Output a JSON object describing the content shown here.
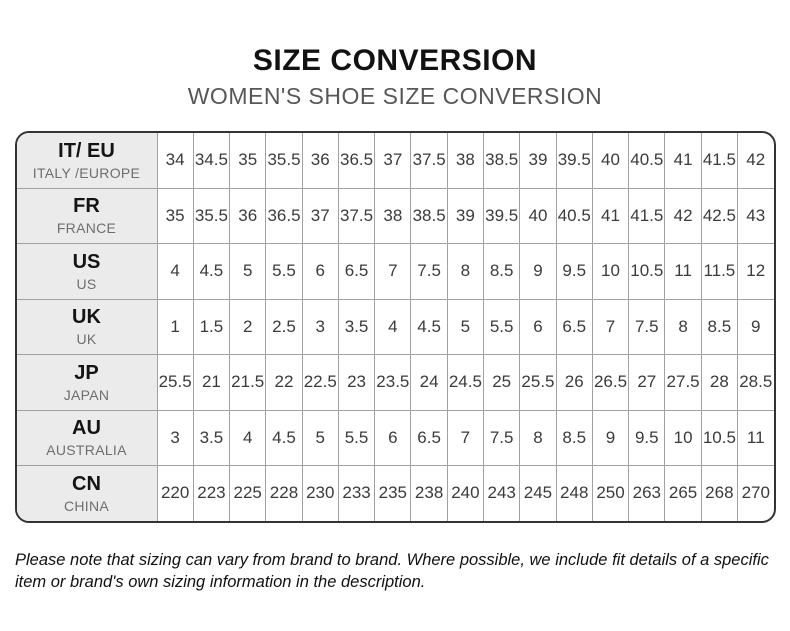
{
  "page": {
    "note": "Please note that sizing can vary from brand to brand. Where possible, we include fit details of a specific item or brand's own sizing information in the description."
  },
  "chart_data": {
    "type": "table",
    "title": "SIZE CONVERSION",
    "subtitle": "WOMEN'S SHOE SIZE CONVERSION",
    "layout": "rows are size systems, columns are equivalent sizes",
    "rows": [
      {
        "code": "IT/ EU",
        "region": "ITALY /EUROPE",
        "values": [
          "34",
          "34.5",
          "35",
          "35.5",
          "36",
          "36.5",
          "37",
          "37.5",
          "38",
          "38.5",
          "39",
          "39.5",
          "40",
          "40.5",
          "41",
          "41.5",
          "42"
        ]
      },
      {
        "code": "FR",
        "region": "FRANCE",
        "values": [
          "35",
          "35.5",
          "36",
          "36.5",
          "37",
          "37.5",
          "38",
          "38.5",
          "39",
          "39.5",
          "40",
          "40.5",
          "41",
          "41.5",
          "42",
          "42.5",
          "43"
        ]
      },
      {
        "code": "US",
        "region": "US",
        "values": [
          "4",
          "4.5",
          "5",
          "5.5",
          "6",
          "6.5",
          "7",
          "7.5",
          "8",
          "8.5",
          "9",
          "9.5",
          "10",
          "10.5",
          "11",
          "11.5",
          "12"
        ]
      },
      {
        "code": "UK",
        "region": "UK",
        "values": [
          "1",
          "1.5",
          "2",
          "2.5",
          "3",
          "3.5",
          "4",
          "4.5",
          "5",
          "5.5",
          "6",
          "6.5",
          "7",
          "7.5",
          "8",
          "8.5",
          "9"
        ]
      },
      {
        "code": "JP",
        "region": "JAPAN",
        "values": [
          "25.5",
          "21",
          "21.5",
          "22",
          "22.5",
          "23",
          "23.5",
          "24",
          "24.5",
          "25",
          "25.5",
          "26",
          "26.5",
          "27",
          "27.5",
          "28",
          "28.5"
        ]
      },
      {
        "code": "AU",
        "region": "AUSTRALIA",
        "values": [
          "3",
          "3.5",
          "4",
          "4.5",
          "5",
          "5.5",
          "6",
          "6.5",
          "7",
          "7.5",
          "8",
          "8.5",
          "9",
          "9.5",
          "10",
          "10.5",
          "11"
        ]
      },
      {
        "code": "CN",
        "region": "CHINA",
        "values": [
          "220",
          "223",
          "225",
          "228",
          "230",
          "233",
          "235",
          "238",
          "240",
          "243",
          "245",
          "248",
          "250",
          "263",
          "265",
          "268",
          "270"
        ]
      }
    ]
  },
  "colors": {
    "outer_border": "#333333",
    "grid_line": "#a1a1a1",
    "header_cell_bg": "#ebebeb",
    "title_text": "#121212",
    "subtitle_text": "#575757",
    "value_text": "#3b3b3b"
  }
}
